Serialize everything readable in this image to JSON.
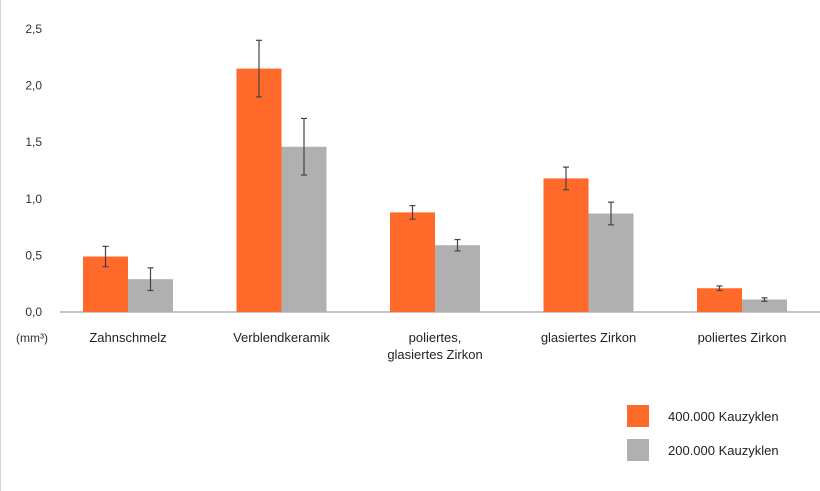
{
  "chart_data": {
    "type": "bar",
    "title": "",
    "xlabel": "",
    "ylabel": "",
    "unit_label": "(mm³)",
    "ylim": [
      0,
      2.5
    ],
    "yticks": [
      0,
      0.5,
      1.0,
      1.5,
      2.0,
      2.5
    ],
    "ytick_labels": [
      "0,0",
      "0,5",
      "1,0",
      "1,5",
      "2,0",
      "2,5"
    ],
    "grid": false,
    "legend_position": "bottom-right",
    "categories": [
      [
        "Zahnschmelz"
      ],
      [
        "Verblendkeramik"
      ],
      [
        "poliertes,",
        "glasiertes Zirkon"
      ],
      [
        "glasiertes Zirkon"
      ],
      [
        "poliertes Zirkon"
      ]
    ],
    "series": [
      {
        "name": "400.000 Kauzyklen",
        "color": "#ff6a2a",
        "values": [
          0.49,
          2.15,
          0.88,
          1.18,
          0.21
        ],
        "errors": [
          0.09,
          0.25,
          0.06,
          0.1,
          0.02
        ]
      },
      {
        "name": "200.000 Kauzyklen",
        "color": "#b0b0b0",
        "values": [
          0.29,
          1.46,
          0.59,
          0.87,
          0.11
        ],
        "errors": [
          0.1,
          0.25,
          0.05,
          0.1,
          0.015
        ]
      }
    ]
  }
}
